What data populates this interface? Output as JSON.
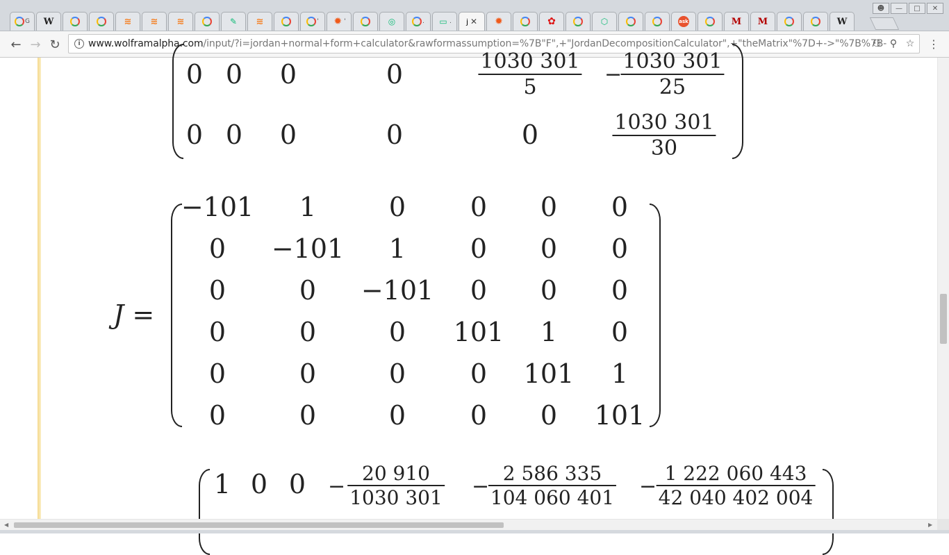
{
  "browser": {
    "tabs": [
      {
        "icon": "google-icon",
        "glyph": "",
        "title": "G"
      },
      {
        "icon": "wikipedia-icon",
        "glyph": "W",
        "title": ""
      },
      {
        "icon": "google-icon",
        "glyph": "",
        "title": ""
      },
      {
        "icon": "google-icon",
        "glyph": "",
        "title": ""
      },
      {
        "icon": "stackoverflow-icon",
        "glyph": "≋",
        "title": ""
      },
      {
        "icon": "stackoverflow-icon",
        "glyph": "≋",
        "title": ""
      },
      {
        "icon": "stackoverflow-icon",
        "glyph": "≋",
        "title": ""
      },
      {
        "icon": "google-icon",
        "glyph": "",
        "title": ""
      },
      {
        "icon": "ruler-icon",
        "glyph": "✎",
        "title": ""
      },
      {
        "icon": "stackoverflow-icon",
        "glyph": "≋",
        "title": ""
      },
      {
        "icon": "google-icon",
        "glyph": "",
        "title": ""
      },
      {
        "icon": "google-icon",
        "glyph": "",
        "title": "'"
      },
      {
        "icon": "wolframalpha-icon",
        "glyph": "✹",
        "title": "'"
      },
      {
        "icon": "google-icon",
        "glyph": "",
        "title": ""
      },
      {
        "icon": "globe-icon",
        "glyph": "◎",
        "title": ""
      },
      {
        "icon": "google-icon",
        "glyph": "",
        "title": "."
      },
      {
        "icon": "folder-icon",
        "glyph": "▭",
        "title": "."
      },
      {
        "icon": "active-tab",
        "glyph": "j",
        "title": "",
        "active": true
      },
      {
        "icon": "wolframalpha-icon",
        "glyph": "✹",
        "title": ""
      },
      {
        "icon": "google-icon",
        "glyph": "",
        "title": ""
      },
      {
        "icon": "flower-icon",
        "glyph": "✿",
        "title": ""
      },
      {
        "icon": "google-icon",
        "glyph": "",
        "title": ""
      },
      {
        "icon": "cube-icon",
        "glyph": "⬡",
        "title": ""
      },
      {
        "icon": "google-icon",
        "glyph": "",
        "title": ""
      },
      {
        "icon": "google-icon",
        "glyph": "",
        "title": ""
      },
      {
        "icon": "ask-icon",
        "glyph": "ask",
        "title": ""
      },
      {
        "icon": "google-icon",
        "glyph": "",
        "title": ""
      },
      {
        "icon": "m-icon",
        "glyph": "M",
        "title": ""
      },
      {
        "icon": "m-icon",
        "glyph": "M",
        "title": ""
      },
      {
        "icon": "google-icon",
        "glyph": "",
        "title": ""
      },
      {
        "icon": "google-icon",
        "glyph": "",
        "title": ""
      },
      {
        "icon": "wikipedia-icon",
        "glyph": "W",
        "title": ""
      }
    ],
    "active_tab_close": "✕",
    "url_host": "www.wolframalpha.com",
    "url_path": "/input/?i=jordan+normal+form+calculator&rawformassumption=%7B\"F\",+\"JordanDecompositionCalculator\",+\"theMatrix\"%7D+->\"%7B%7B-"
  },
  "math": {
    "top_matrix_rows": [
      {
        "cells": [
          "0",
          "0",
          "0",
          "0"
        ],
        "frac1": {
          "num": "1030 301",
          "den": "5"
        },
        "frac2": {
          "sign": "−",
          "num": "1030 301",
          "den": "25"
        }
      },
      {
        "cells": [
          "0",
          "0",
          "0",
          "0",
          "0"
        ],
        "frac2": {
          "num": "1030 301",
          "den": "30"
        }
      }
    ],
    "J_label": "J =",
    "J_rows": [
      [
        "−101",
        "1",
        "0",
        "0",
        "0",
        "0"
      ],
      [
        "0",
        "−101",
        "1",
        "0",
        "0",
        "0"
      ],
      [
        "0",
        "0",
        "−101",
        "0",
        "0",
        "0"
      ],
      [
        "0",
        "0",
        "0",
        "101",
        "1",
        "0"
      ],
      [
        "0",
        "0",
        "0",
        "0",
        "101",
        "1"
      ],
      [
        "0",
        "0",
        "0",
        "0",
        "0",
        "101"
      ]
    ],
    "bottom_row": {
      "cells": [
        "1",
        "0",
        "0"
      ],
      "fracs": [
        {
          "sign": "−",
          "num": "20 910",
          "den": "1030 301"
        },
        {
          "sign": "−",
          "num": "2 586 335",
          "den": "104 060 401"
        },
        {
          "sign": "−",
          "num": "1 222 060 443",
          "den": "42 040 402 004"
        }
      ]
    }
  }
}
